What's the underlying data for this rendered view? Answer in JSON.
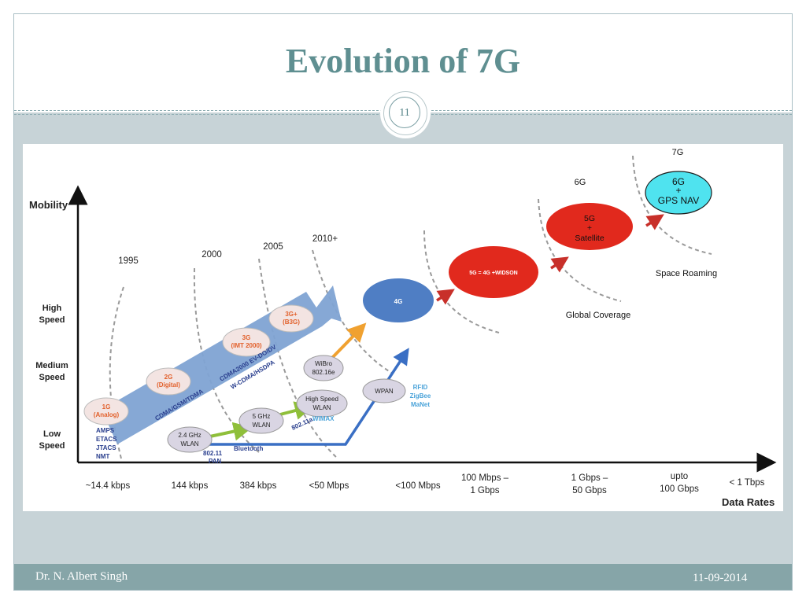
{
  "slide": {
    "title": "Evolution of 7G",
    "page_number": "11",
    "author": "Dr. N. Albert Singh",
    "date": "11-09-2014"
  },
  "axes": {
    "y_label": "Mobility",
    "x_label": "Data Rates",
    "y_levels": [
      {
        "line1": "High",
        "line2": "Speed"
      },
      {
        "line1": "Medium",
        "line2": "Speed"
      },
      {
        "line1": "Low",
        "line2": "Speed"
      }
    ],
    "x_ticks": [
      {
        "line1": "~14.4 kbps",
        "line2": ""
      },
      {
        "line1": "144 kbps",
        "line2": ""
      },
      {
        "line1": "384 kbps",
        "line2": ""
      },
      {
        "line1": "<50 Mbps",
        "line2": ""
      },
      {
        "line1": "<100 Mbps",
        "line2": ""
      },
      {
        "line1": "100 Mbps –",
        "line2": "1 Gbps"
      },
      {
        "line1": "1 Gbps –",
        "line2": "50 Gbps"
      },
      {
        "line1": "upto",
        "line2": "100 Gbps"
      },
      {
        "line1": "< 1 Tbps",
        "line2": ""
      }
    ]
  },
  "years": [
    "1995",
    "2000",
    "2005",
    "2010+"
  ],
  "generations": {
    "g1": {
      "line1": "1G",
      "line2": "(Analog)"
    },
    "g2": {
      "line1": "2G",
      "line2": "(Digital)"
    },
    "g3": {
      "line1": "3G",
      "line2": "(IMT 2000)"
    },
    "g3plus": {
      "line1": "3G+",
      "line2": "(B3G)"
    },
    "g4": "4G",
    "g5": "5G = 4G +WIDSON",
    "g6": {
      "line1": "5G",
      "line2": "+",
      "line3": "Satellite"
    },
    "g7": {
      "line1": "6G",
      "line2": "+",
      "line3": "GPS NAV"
    }
  },
  "gen_headings": {
    "g6": "6G",
    "g7": "7G"
  },
  "standards": {
    "g1_list": [
      "AMPS",
      "ETACS",
      "JTACS",
      "NMT"
    ],
    "g2": "CDMA/GSM/TDMA",
    "g3_line1": "CDMA2000 EV-DO/DV",
    "g3_line2": "W-CDMA/HSDPA"
  },
  "wireless": {
    "wlan24": {
      "line1": "2.4 GHz",
      "line2": "WLAN"
    },
    "wlan5": {
      "line1": "5 GHz",
      "line2": "WLAN"
    },
    "hs_wlan": {
      "line1": "High Speed",
      "line2": "WLAN"
    },
    "wibro": {
      "line1": "WiBro",
      "line2": "802.16e"
    },
    "wpan": "WPAN",
    "pan_label": {
      "line1": "802.11",
      "line2": "PAN"
    },
    "bluetooth": "Bluetooth",
    "std_80211a": "802.11a",
    "wimax": "WiMAX",
    "rfid": [
      "RFID",
      "ZigBee",
      "MaNet"
    ]
  },
  "coverage_labels": {
    "global": "Global Coverage",
    "space": "Space Roaming"
  },
  "colors": {
    "title": "#5f8f91",
    "band_blue": "#7fa3d3",
    "gen_ellipse": "#f3e4e2",
    "gen_text": "#e2602b",
    "std_text": "#2a3f8e",
    "g4_blue": "#4f7ec4",
    "g5_red": "#e1291d",
    "g7_cyan": "#4fe3ef",
    "arrow_green": "#8fbf3a",
    "arrow_orange": "#f0a130",
    "arrow_red": "#c8302a"
  }
}
